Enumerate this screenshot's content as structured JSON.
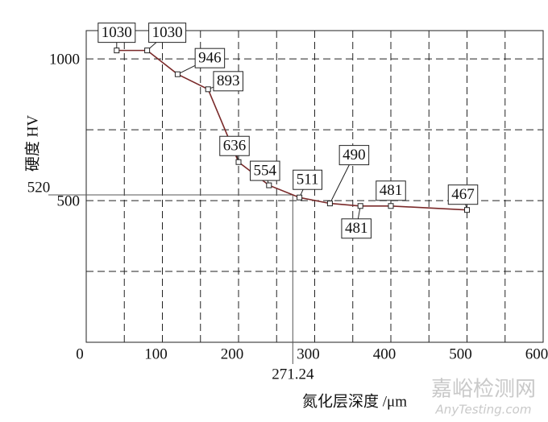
{
  "chart_data": {
    "type": "line",
    "x_label": "氮化层深度 /μm",
    "y_label": "硬度 HV",
    "x": [
      40,
      80,
      120,
      160,
      200,
      240,
      280,
      320,
      360,
      400,
      500
    ],
    "series": [
      {
        "color": "#7a2a2a",
        "values": [
          1030,
          1030,
          946,
          893,
          636,
          554,
          511,
          490,
          481,
          481,
          467
        ]
      }
    ],
    "xlim": [
      0,
      600
    ],
    "xticks": [
      0,
      100,
      200,
      300,
      400,
      500,
      600
    ],
    "ylim": [
      0,
      1100
    ],
    "yticks": [
      500,
      1000
    ],
    "xgrid": [
      50,
      100,
      150,
      200,
      250,
      300,
      350,
      400,
      450,
      500,
      550
    ],
    "ygrid": [
      250,
      500,
      750,
      1000
    ],
    "grid": true,
    "annotations": [
      {
        "value": 520,
        "axis": "y",
        "label": "520"
      },
      {
        "value": 271.24,
        "axis": "x",
        "label": "271.24"
      }
    ],
    "watermark": [
      "嘉峪检测网",
      "AnyTesting.com"
    ]
  }
}
